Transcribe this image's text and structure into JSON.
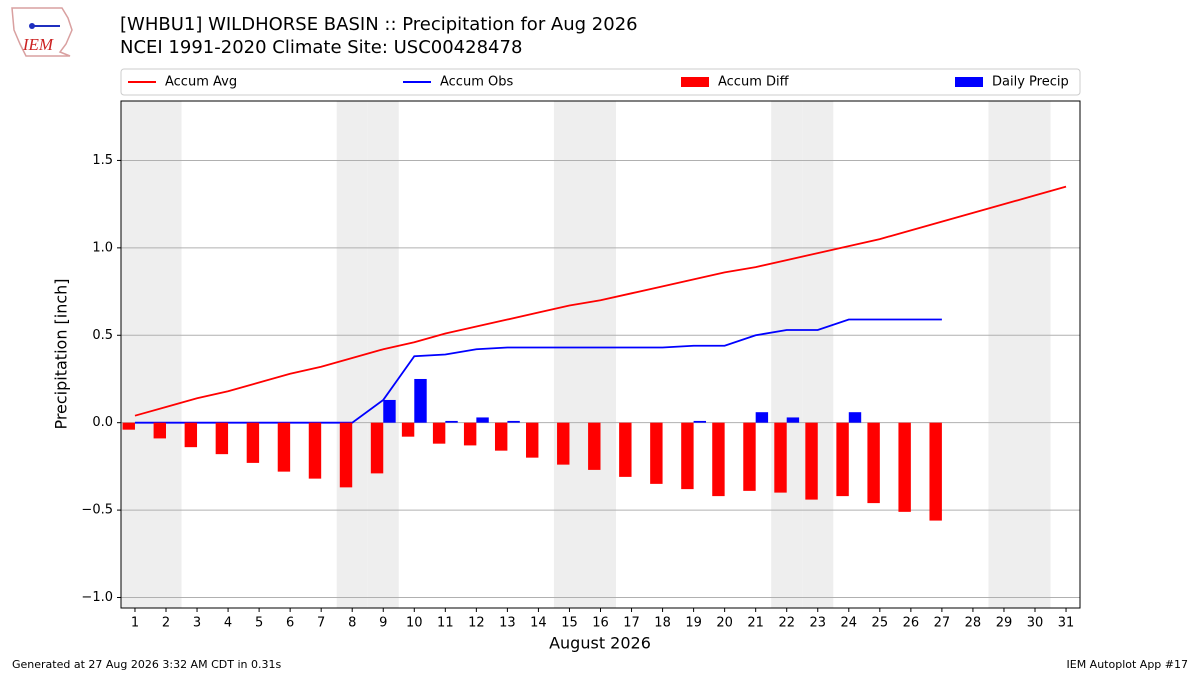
{
  "chart_data": {
    "type": "combo",
    "logo": "IEM",
    "title": "[WHBU1] WILDHORSE BASIN :: Precipitation for Aug 2026",
    "subtitle": "NCEI 1991-2020 Climate Site: USC00428478",
    "xlabel": "August 2026",
    "ylabel": "Precipitation [inch]",
    "footer_left": "Generated at 27 Aug 2026 3:32 AM CDT in 0.31s",
    "footer_right": "IEM Autoplot App #17",
    "x": [
      1,
      2,
      3,
      4,
      5,
      6,
      7,
      8,
      9,
      10,
      11,
      12,
      13,
      14,
      15,
      16,
      17,
      18,
      19,
      20,
      21,
      22,
      23,
      24,
      25,
      26,
      27,
      28,
      29,
      30,
      31
    ],
    "shaded_days": [
      1,
      2,
      8,
      9,
      15,
      16,
      22,
      23,
      29,
      30
    ],
    "shade_color": "#eeeeee",
    "series": [
      {
        "name": "Accum Avg",
        "type": "line",
        "color": "#ff0000",
        "values": [
          0.04,
          0.09,
          0.14,
          0.18,
          0.23,
          0.28,
          0.32,
          0.37,
          0.42,
          0.46,
          0.51,
          0.55,
          0.59,
          0.63,
          0.67,
          0.7,
          0.74,
          0.78,
          0.82,
          0.86,
          0.89,
          0.93,
          0.97,
          1.01,
          1.05,
          1.1,
          1.15,
          1.2,
          1.25,
          1.3,
          1.35
        ]
      },
      {
        "name": "Accum Obs",
        "type": "line",
        "color": "#0000ff",
        "values": [
          0,
          0,
          0,
          0,
          0,
          0,
          0,
          0,
          0.13,
          0.38,
          0.39,
          0.42,
          0.43,
          0.43,
          0.43,
          0.43,
          0.43,
          0.43,
          0.44,
          0.44,
          0.5,
          0.53,
          0.53,
          0.59,
          0.59,
          0.59,
          0.59,
          null,
          null,
          null,
          null
        ]
      },
      {
        "name": "Accum Diff",
        "type": "bar",
        "color": "#ff0000",
        "values": [
          -0.04,
          -0.09,
          -0.14,
          -0.18,
          -0.23,
          -0.28,
          -0.32,
          -0.37,
          -0.29,
          -0.08,
          -0.12,
          -0.13,
          -0.16,
          -0.2,
          -0.24,
          -0.27,
          -0.31,
          -0.35,
          -0.38,
          -0.42,
          -0.39,
          -0.4,
          -0.44,
          -0.42,
          -0.46,
          -0.51,
          -0.56,
          null,
          null,
          null,
          null
        ]
      },
      {
        "name": "Daily Precip",
        "type": "bar",
        "color": "#0000ff",
        "values": [
          0,
          0,
          0,
          0,
          0,
          0,
          0,
          0,
          0.13,
          0.25,
          0.01,
          0.03,
          0.01,
          0,
          0,
          0,
          0,
          0,
          0.01,
          0,
          0.06,
          0.03,
          0,
          0.06,
          0,
          0,
          0,
          null,
          null,
          null,
          null
        ]
      }
    ],
    "xlim": [
      0.55,
      31.45
    ],
    "xticks": [
      1,
      2,
      3,
      4,
      5,
      6,
      7,
      8,
      9,
      10,
      11,
      12,
      13,
      14,
      15,
      16,
      17,
      18,
      19,
      20,
      21,
      22,
      23,
      24,
      25,
      26,
      27,
      28,
      29,
      30,
      31
    ],
    "ylim": [
      -1.06,
      1.84
    ],
    "yticks": [
      {
        "value": -1.0,
        "label": "−1.0"
      },
      {
        "value": -0.5,
        "label": "−0.5"
      },
      {
        "value": 0,
        "label": "0.0"
      },
      0.5,
      {
        "value": 1.0,
        "label": "1.0"
      },
      1.5
    ],
    "grid": true
  }
}
